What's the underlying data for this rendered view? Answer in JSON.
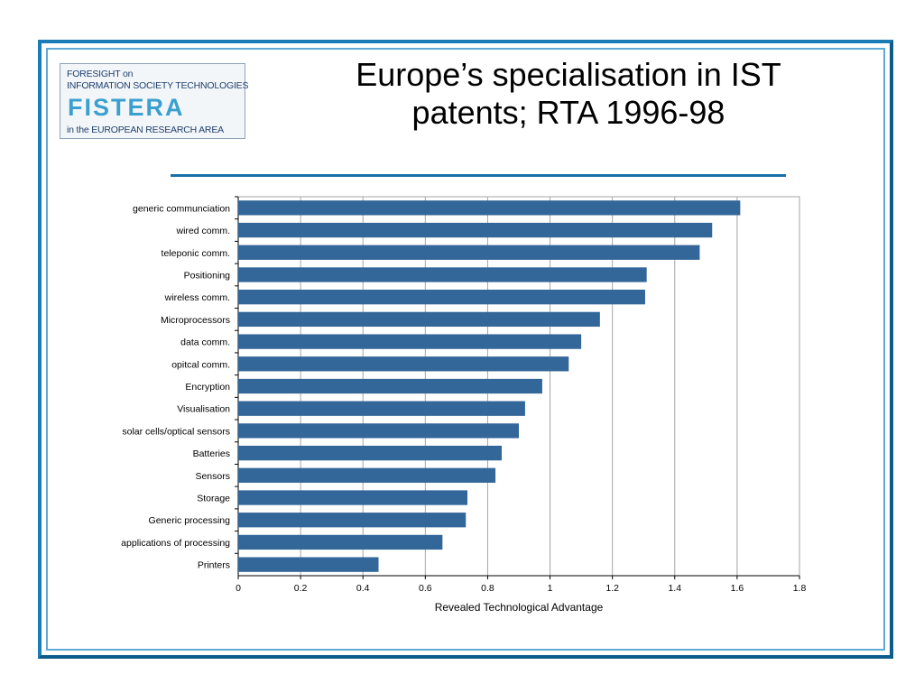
{
  "logo": {
    "line1": "FORESIGHT on",
    "line2": "INFORMATION SOCIETY TECHNOLOGIES",
    "brand": "FISTERA",
    "line4": "in the EUROPEAN RESEARCH AREA"
  },
  "slide": {
    "title_line1": "Europe’s specialisation in IST",
    "title_line2": "patents; RTA 1996-98"
  },
  "colors": {
    "bar": "#336699",
    "frame": "#0d5c8c",
    "rule": "#1a6fa8",
    "grid": "#a6a6a6"
  },
  "chart_data": {
    "type": "bar",
    "orientation": "horizontal",
    "categories": [
      "generic communciation",
      "wired comm.",
      "teleponic comm.",
      "Positioning",
      "wireless comm.",
      "Microprocessors",
      "data comm.",
      "opitcal comm.",
      "Encryption",
      "Visualisation",
      "solar cells/optical sensors",
      "Batteries",
      "Sensors",
      "Storage",
      "Generic processing",
      "applications of processing",
      "Printers"
    ],
    "values": [
      1.61,
      1.52,
      1.48,
      1.31,
      1.305,
      1.16,
      1.1,
      1.06,
      0.975,
      0.92,
      0.9,
      0.845,
      0.825,
      0.735,
      0.73,
      0.655,
      0.45
    ],
    "xlabel": "Revealed Technological Advantage",
    "ylabel": "",
    "xlim": [
      0,
      1.8
    ],
    "xticks": [
      "0",
      "0.2",
      "0.4",
      "0.6",
      "0.8",
      "1",
      "1.2",
      "1.4",
      "1.6",
      "1.8"
    ],
    "grid": "vertical"
  }
}
